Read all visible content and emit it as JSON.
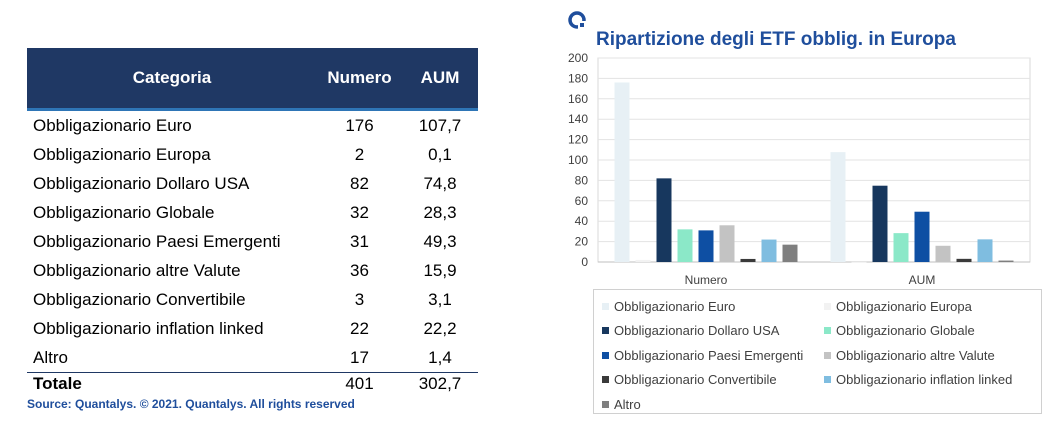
{
  "table": {
    "headers": [
      "Categoria",
      "Numero",
      "AUM"
    ],
    "rows": [
      [
        "Obbligazionario Euro",
        "176",
        "107,7"
      ],
      [
        "Obbligazionario Europa",
        "2",
        "0,1"
      ],
      [
        "Obbligazionario Dollaro USA",
        "82",
        "74,8"
      ],
      [
        "Obbligazionario Globale",
        "32",
        "28,3"
      ],
      [
        "Obbligazionario Paesi Emergenti",
        "31",
        "49,3"
      ],
      [
        "Obbligazionario altre Valute",
        "36",
        "15,9"
      ],
      [
        "Obbligazionario Convertibile",
        "3",
        "3,1"
      ],
      [
        "Obbligazionario inflation linked",
        "22",
        "22,2"
      ],
      [
        "Altro",
        "17",
        "1,4"
      ]
    ],
    "total": [
      "Totale",
      "401",
      "302,7"
    ]
  },
  "source": "Source: Quantalys. © 2021. Quantalys. All rights reserved",
  "chart_data": {
    "type": "bar",
    "title": "Ripartizione degli ETF obblig. in Europa",
    "categories": [
      "Numero",
      "AUM"
    ],
    "ylim": [
      0,
      200
    ],
    "yticks": [
      0,
      20,
      40,
      60,
      80,
      100,
      120,
      140,
      160,
      180,
      200
    ],
    "grid": true,
    "legend_position": "bottom",
    "series": [
      {
        "name": "Obbligazionario Euro",
        "color": "#e7f0f5",
        "values": [
          176,
          107.7
        ]
      },
      {
        "name": "Obbligazionario Europa",
        "color": "#f2f2f2",
        "values": [
          2,
          0.1
        ]
      },
      {
        "name": "Obbligazionario Dollaro USA",
        "color": "#17375e",
        "values": [
          82,
          74.8
        ]
      },
      {
        "name": "Obbligazionario Globale",
        "color": "#8be8c8",
        "values": [
          32,
          28.3
        ]
      },
      {
        "name": "Obbligazionario Paesi Emergenti",
        "color": "#0e4fa3",
        "values": [
          31,
          49.3
        ]
      },
      {
        "name": "Obbligazionario altre Valute",
        "color": "#c3c3c3",
        "values": [
          36,
          15.9
        ]
      },
      {
        "name": "Obbligazionario Convertibile",
        "color": "#3a3a3a",
        "values": [
          3,
          3.1
        ]
      },
      {
        "name": "Obbligazionario inflation linked",
        "color": "#7fbde0",
        "values": [
          22,
          22.2
        ]
      },
      {
        "name": "Altro",
        "color": "#7f7f7f",
        "values": [
          17,
          1.4
        ]
      }
    ]
  }
}
